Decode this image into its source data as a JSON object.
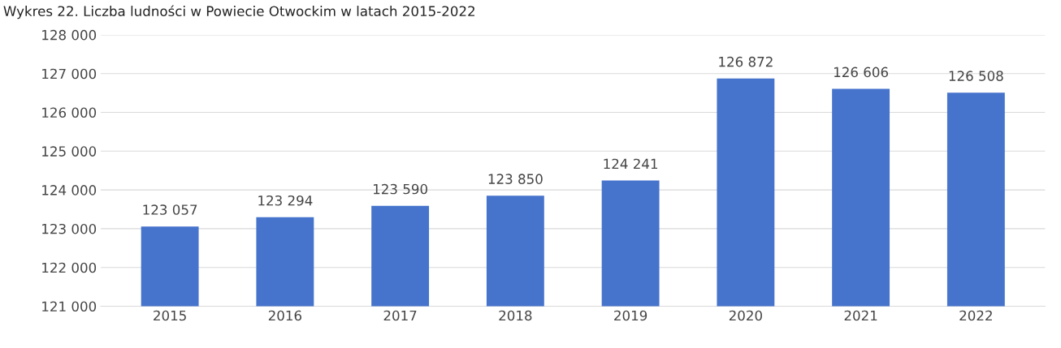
{
  "chart_data": {
    "type": "bar",
    "title": "Wykres 22. Liczba ludności w Powiecie Otwockim w latach 2015-2022",
    "categories": [
      "2015",
      "2016",
      "2017",
      "2018",
      "2019",
      "2020",
      "2021",
      "2022"
    ],
    "values": [
      123057,
      123294,
      123590,
      123850,
      124241,
      126872,
      126606,
      126508
    ],
    "value_labels": [
      "123 057",
      "123 294",
      "123 590",
      "123 850",
      "124 241",
      "126 872",
      "126 606",
      "126 508"
    ],
    "color": "#4673cc",
    "ylim": [
      121000,
      128000
    ],
    "yticks": [
      {
        "value": 121000,
        "label": "121 000"
      },
      {
        "value": 122000,
        "label": "122 000"
      },
      {
        "value": 123000,
        "label": "123 000"
      },
      {
        "value": 124000,
        "label": "124 000"
      },
      {
        "value": 125000,
        "label": "125 000"
      },
      {
        "value": 126000,
        "label": "126 000"
      },
      {
        "value": 127000,
        "label": "127 000"
      },
      {
        "value": 128000,
        "label": "128 000"
      }
    ],
    "grid": "y"
  }
}
